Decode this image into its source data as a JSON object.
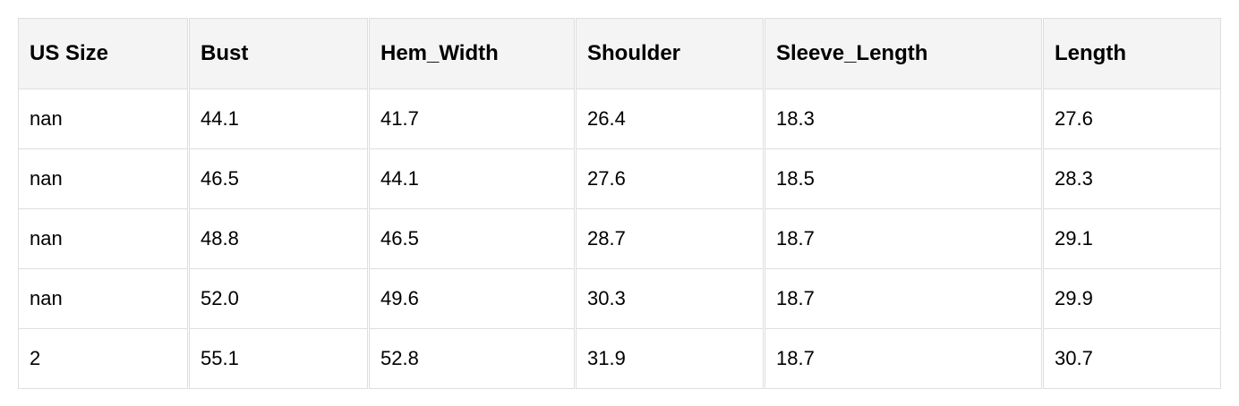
{
  "table": {
    "headers": [
      "US Size",
      "Bust",
      "Hem_Width",
      "Shoulder",
      "Sleeve_Length",
      "Length"
    ],
    "rows": [
      [
        "nan",
        "44.1",
        "41.7",
        "26.4",
        "18.3",
        "27.6"
      ],
      [
        "nan",
        "46.5",
        "44.1",
        "27.6",
        "18.5",
        "28.3"
      ],
      [
        "nan",
        "48.8",
        "46.5",
        "28.7",
        "18.7",
        "29.1"
      ],
      [
        "nan",
        "52.0",
        "49.6",
        "30.3",
        "18.7",
        "29.9"
      ],
      [
        "2",
        "55.1",
        "52.8",
        "31.9",
        "18.7",
        "30.7"
      ]
    ]
  }
}
